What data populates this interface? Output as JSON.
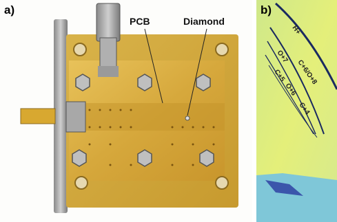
{
  "panels": [
    {
      "label": "a)",
      "annotations": [
        "PCB",
        "Diamond"
      ]
    },
    {
      "label": "b)",
      "annotations": [
        "H+",
        "C+6/O+8",
        "O+7",
        "C+5",
        "O+6",
        "C+4"
      ]
    }
  ]
}
